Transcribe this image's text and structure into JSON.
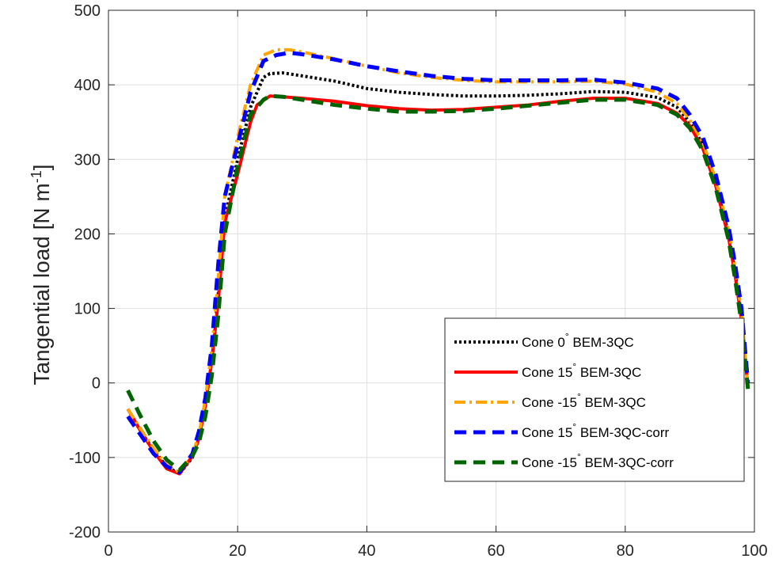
{
  "chart_data": {
    "type": "line",
    "title": "",
    "xlabel": "",
    "ylabel": "Tangential load [N m",
    "ylabel_sup": "-1",
    "ylabel_close": "]",
    "xlim": [
      0,
      100
    ],
    "ylim": [
      -200,
      500
    ],
    "xticks": [
      0,
      20,
      40,
      60,
      80,
      100
    ],
    "yticks": [
      -200,
      -100,
      0,
      100,
      200,
      300,
      400,
      500
    ],
    "grid": true,
    "legend_position": "bottom-right",
    "series": [
      {
        "name": "Cone 0° BEM-3QC",
        "name_prefix": "Cone 0",
        "name_suffix": " BEM-3QC",
        "degree_mark": "°",
        "color": "#000000",
        "style": "dotted",
        "points": [
          [
            3,
            -35
          ],
          [
            5,
            -65
          ],
          [
            7,
            -90
          ],
          [
            9,
            -112
          ],
          [
            11,
            -122
          ],
          [
            13,
            -100
          ],
          [
            14,
            -75
          ],
          [
            15,
            -30
          ],
          [
            16,
            30
          ],
          [
            17,
            120
          ],
          [
            18,
            220
          ],
          [
            20,
            300
          ],
          [
            22,
            370
          ],
          [
            24,
            410
          ],
          [
            25,
            415
          ],
          [
            27,
            416
          ],
          [
            30,
            412
          ],
          [
            35,
            405
          ],
          [
            40,
            395
          ],
          [
            45,
            390
          ],
          [
            50,
            387
          ],
          [
            55,
            385
          ],
          [
            60,
            385
          ],
          [
            65,
            386
          ],
          [
            70,
            388
          ],
          [
            75,
            391
          ],
          [
            80,
            390
          ],
          [
            85,
            383
          ],
          [
            88,
            370
          ],
          [
            90,
            350
          ],
          [
            92,
            320
          ],
          [
            94,
            270
          ],
          [
            96,
            200
          ],
          [
            97,
            150
          ],
          [
            98,
            90
          ],
          [
            98.6,
            30
          ],
          [
            99,
            -5
          ]
        ]
      },
      {
        "name": "Cone 15° BEM-3QC",
        "name_prefix": "Cone 15",
        "name_suffix": " BEM-3QC",
        "degree_mark": "°",
        "color": "#ff0000",
        "style": "solid",
        "points": [
          [
            3,
            -35
          ],
          [
            5,
            -65
          ],
          [
            7,
            -92
          ],
          [
            9,
            -115
          ],
          [
            11,
            -122
          ],
          [
            13,
            -98
          ],
          [
            14,
            -75
          ],
          [
            15,
            -30
          ],
          [
            16,
            30
          ],
          [
            17,
            110
          ],
          [
            18,
            215
          ],
          [
            20,
            280
          ],
          [
            22,
            350
          ],
          [
            23,
            373
          ],
          [
            25,
            385
          ],
          [
            27,
            384
          ],
          [
            30,
            382
          ],
          [
            35,
            378
          ],
          [
            40,
            372
          ],
          [
            45,
            368
          ],
          [
            50,
            366
          ],
          [
            55,
            367
          ],
          [
            60,
            370
          ],
          [
            65,
            373
          ],
          [
            70,
            378
          ],
          [
            75,
            382
          ],
          [
            80,
            382
          ],
          [
            85,
            375
          ],
          [
            88,
            362
          ],
          [
            90,
            345
          ],
          [
            92,
            315
          ],
          [
            94,
            265
          ],
          [
            96,
            195
          ],
          [
            97,
            145
          ],
          [
            98,
            85
          ],
          [
            98.6,
            30
          ],
          [
            99,
            -5
          ]
        ]
      },
      {
        "name": "Cone -15° BEM-3QC",
        "name_prefix": "Cone -15",
        "name_suffix": " BEM-3QC",
        "degree_mark": "°",
        "color": "#ffa500",
        "style": "dashdot",
        "points": [
          [
            3,
            -35
          ],
          [
            5,
            -62
          ],
          [
            7,
            -88
          ],
          [
            9,
            -110
          ],
          [
            11,
            -120
          ],
          [
            13,
            -96
          ],
          [
            14,
            -70
          ],
          [
            15,
            -22
          ],
          [
            16,
            45
          ],
          [
            17,
            140
          ],
          [
            18,
            250
          ],
          [
            20,
            330
          ],
          [
            22,
            400
          ],
          [
            24,
            440
          ],
          [
            26,
            447
          ],
          [
            28,
            447
          ],
          [
            30,
            444
          ],
          [
            35,
            435
          ],
          [
            40,
            425
          ],
          [
            45,
            416
          ],
          [
            50,
            410
          ],
          [
            55,
            406
          ],
          [
            60,
            404
          ],
          [
            65,
            404
          ],
          [
            70,
            404
          ],
          [
            75,
            405
          ],
          [
            80,
            401
          ],
          [
            85,
            390
          ],
          [
            88,
            375
          ],
          [
            90,
            353
          ],
          [
            92,
            323
          ],
          [
            94,
            273
          ],
          [
            96,
            205
          ],
          [
            97,
            155
          ],
          [
            98,
            95
          ],
          [
            98.6,
            35
          ],
          [
            99,
            -5
          ]
        ]
      },
      {
        "name": "Cone 15° BEM-3QC-corr",
        "name_prefix": "Cone 15",
        "name_suffix": " BEM-3QC-corr",
        "degree_mark": "°",
        "color": "#0000ff",
        "style": "dashed",
        "points": [
          [
            3,
            -45
          ],
          [
            5,
            -70
          ],
          [
            7,
            -95
          ],
          [
            9,
            -112
          ],
          [
            11,
            -120
          ],
          [
            13,
            -95
          ],
          [
            14,
            -65
          ],
          [
            15,
            -20
          ],
          [
            16,
            50
          ],
          [
            17,
            160
          ],
          [
            18,
            250
          ],
          [
            20,
            320
          ],
          [
            22,
            390
          ],
          [
            24,
            432
          ],
          [
            26,
            440
          ],
          [
            28,
            443
          ],
          [
            30,
            441
          ],
          [
            35,
            434
          ],
          [
            40,
            425
          ],
          [
            45,
            418
          ],
          [
            50,
            412
          ],
          [
            55,
            408
          ],
          [
            60,
            406
          ],
          [
            65,
            406
          ],
          [
            70,
            406
          ],
          [
            75,
            407
          ],
          [
            80,
            403
          ],
          [
            85,
            395
          ],
          [
            88,
            382
          ],
          [
            90,
            360
          ],
          [
            92,
            330
          ],
          [
            94,
            280
          ],
          [
            96,
            210
          ],
          [
            97,
            160
          ],
          [
            98,
            100
          ],
          [
            98.6,
            40
          ],
          [
            99,
            0
          ]
        ]
      },
      {
        "name": "Cone -15° BEM-3QC-corr",
        "name_prefix": "Cone -15",
        "name_suffix": " BEM-3QC-corr",
        "degree_mark": "°",
        "color": "#006400",
        "style": "dashed",
        "points": [
          [
            3,
            -10
          ],
          [
            5,
            -45
          ],
          [
            7,
            -78
          ],
          [
            9,
            -103
          ],
          [
            11,
            -117
          ],
          [
            13,
            -98
          ],
          [
            14,
            -80
          ],
          [
            15,
            -45
          ],
          [
            16,
            10
          ],
          [
            17,
            90
          ],
          [
            18,
            200
          ],
          [
            20,
            290
          ],
          [
            22,
            360
          ],
          [
            24,
            380
          ],
          [
            25,
            385
          ],
          [
            27,
            384
          ],
          [
            30,
            380
          ],
          [
            35,
            373
          ],
          [
            40,
            368
          ],
          [
            45,
            364
          ],
          [
            50,
            364
          ],
          [
            55,
            365
          ],
          [
            60,
            368
          ],
          [
            65,
            372
          ],
          [
            70,
            376
          ],
          [
            75,
            380
          ],
          [
            80,
            380
          ],
          [
            85,
            373
          ],
          [
            88,
            360
          ],
          [
            90,
            342
          ],
          [
            92,
            312
          ],
          [
            94,
            262
          ],
          [
            96,
            192
          ],
          [
            97,
            140
          ],
          [
            98,
            80
          ],
          [
            98.6,
            25
          ],
          [
            99,
            -8
          ]
        ]
      }
    ]
  }
}
